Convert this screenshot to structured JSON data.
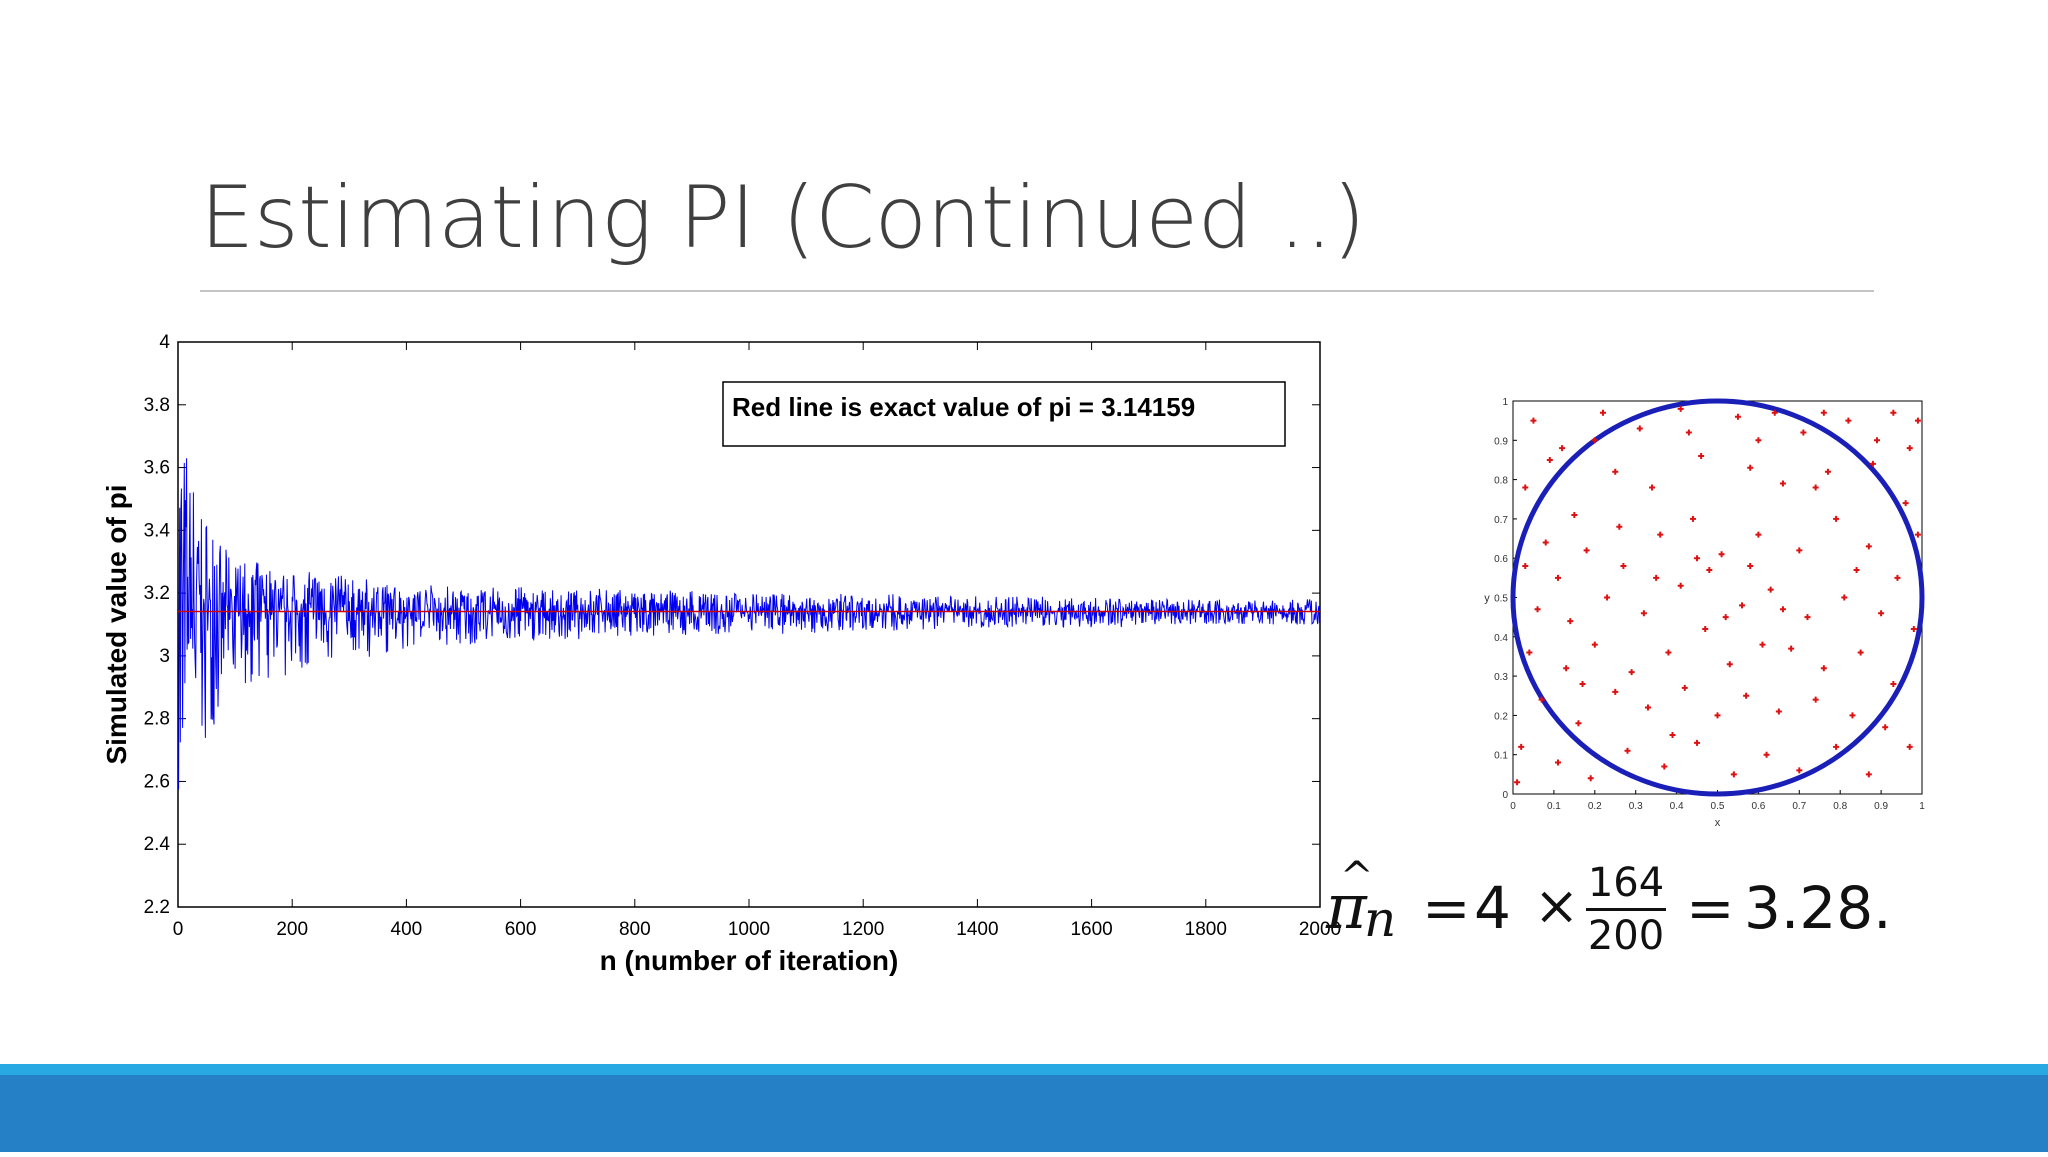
{
  "slide": {
    "title": "Estimating PI (Continued ..)"
  },
  "colors": {
    "footer_accent": "#29a9e3",
    "footer_bar": "#2680c5",
    "series_blue": "#0000ee",
    "exact_red": "#cc0000",
    "dots_red": "#dd1111"
  },
  "chart_data": [
    {
      "type": "line",
      "xlabel": "n (number of iteration)",
      "ylabel": "Simulated value of pi",
      "xlim": [
        0,
        2000
      ],
      "ylim": [
        2.2,
        4
      ],
      "xticks": [
        "0",
        "200",
        "400",
        "600",
        "800",
        "1000",
        "1200",
        "1400",
        "1600",
        "1800",
        "2000"
      ],
      "yticks": [
        "2.2",
        "2.4",
        "2.6",
        "2.8",
        "3",
        "3.2",
        "3.4",
        "3.6",
        "3.8",
        "4"
      ],
      "annotation": "Red line is exact value of pi = 3.14159",
      "reference_line": 3.14159,
      "series": [
        {
          "x": [
            0,
            20,
            40,
            60,
            80,
            100,
            150,
            200,
            250,
            300,
            350,
            400,
            450,
            500,
            550,
            600,
            650,
            700,
            750,
            800,
            850,
            900,
            950,
            1000,
            1050,
            1100,
            1150,
            1200,
            1250,
            1300,
            1350,
            1400,
            1450,
            1500,
            1550,
            1600,
            1650,
            1700,
            1750,
            1800,
            1850,
            1900,
            1950,
            2000
          ],
          "y": [
            4,
            3.6,
            3.5,
            3.4,
            3.35,
            3.3,
            3.3,
            3.26,
            3.28,
            3.25,
            3.24,
            3.22,
            3.23,
            3.22,
            3.22,
            3.22,
            3.21,
            3.21,
            3.22,
            3.2,
            3.21,
            3.21,
            3.2,
            3.2,
            3.2,
            3.2,
            3.2,
            3.19,
            3.2,
            3.19,
            3.19,
            3.19,
            3.19,
            3.19,
            3.19,
            3.19,
            3.18,
            3.18,
            3.18,
            3.18,
            3.18,
            3.18,
            3.18,
            3.18
          ],
          "y_low": [
            2.5,
            2.6,
            2.65,
            2.75,
            2.85,
            2.88,
            2.9,
            2.93,
            2.95,
            2.98,
            3,
            3.02,
            3.03,
            3.03,
            3.05,
            3.04,
            3.05,
            3.05,
            3.06,
            3.06,
            3.06,
            3.06,
            3.06,
            3.07,
            3.07,
            3.07,
            3.08,
            3.08,
            3.08,
            3.08,
            3.08,
            3.09,
            3.09,
            3.09,
            3.09,
            3.09,
            3.09,
            3.1,
            3.1,
            3.1,
            3.1,
            3.1,
            3.1,
            3.1
          ]
        }
      ]
    },
    {
      "type": "scatter",
      "xlabel": "x",
      "ylabel": "y",
      "xlim": [
        0,
        1
      ],
      "ylim": [
        0,
        1
      ],
      "xticks": [
        "0",
        "0.1",
        "0.2",
        "0.3",
        "0.4",
        "0.5",
        "0.6",
        "0.7",
        "0.8",
        "0.9",
        "1"
      ],
      "yticks": [
        "0",
        "0.1",
        "0.2",
        "0.3",
        "0.4",
        "0.5",
        "0.6",
        "0.7",
        "0.8",
        "0.9",
        "1"
      ],
      "circle": {
        "cx": 0.5,
        "cy": 0.5,
        "r": 0.5
      },
      "points": [
        [
          0.05,
          0.95
        ],
        [
          0.12,
          0.88
        ],
        [
          0.22,
          0.97
        ],
        [
          0.31,
          0.93
        ],
        [
          0.41,
          0.98
        ],
        [
          0.55,
          0.96
        ],
        [
          0.64,
          0.97
        ],
        [
          0.71,
          0.92
        ],
        [
          0.82,
          0.95
        ],
        [
          0.93,
          0.97
        ],
        [
          0.03,
          0.78
        ],
        [
          0.08,
          0.64
        ],
        [
          0.15,
          0.71
        ],
        [
          0.25,
          0.82
        ],
        [
          0.34,
          0.78
        ],
        [
          0.46,
          0.86
        ],
        [
          0.58,
          0.83
        ],
        [
          0.66,
          0.79
        ],
        [
          0.77,
          0.82
        ],
        [
          0.88,
          0.84
        ],
        [
          0.97,
          0.88
        ],
        [
          0.96,
          0.74
        ],
        [
          0.11,
          0.55
        ],
        [
          0.18,
          0.62
        ],
        [
          0.27,
          0.58
        ],
        [
          0.36,
          0.66
        ],
        [
          0.44,
          0.7
        ],
        [
          0.51,
          0.61
        ],
        [
          0.6,
          0.66
        ],
        [
          0.7,
          0.62
        ],
        [
          0.79,
          0.7
        ],
        [
          0.87,
          0.63
        ],
        [
          0.94,
          0.55
        ],
        [
          0.06,
          0.47
        ],
        [
          0.14,
          0.44
        ],
        [
          0.23,
          0.5
        ],
        [
          0.32,
          0.46
        ],
        [
          0.41,
          0.53
        ],
        [
          0.48,
          0.57
        ],
        [
          0.56,
          0.48
        ],
        [
          0.63,
          0.52
        ],
        [
          0.72,
          0.45
        ],
        [
          0.81,
          0.5
        ],
        [
          0.9,
          0.46
        ],
        [
          0.98,
          0.42
        ],
        [
          0.04,
          0.36
        ],
        [
          0.13,
          0.32
        ],
        [
          0.2,
          0.38
        ],
        [
          0.29,
          0.31
        ],
        [
          0.38,
          0.36
        ],
        [
          0.47,
          0.42
        ],
        [
          0.53,
          0.33
        ],
        [
          0.61,
          0.38
        ],
        [
          0.68,
          0.37
        ],
        [
          0.76,
          0.32
        ],
        [
          0.85,
          0.36
        ],
        [
          0.93,
          0.28
        ],
        [
          0.07,
          0.24
        ],
        [
          0.16,
          0.18
        ],
        [
          0.25,
          0.26
        ],
        [
          0.33,
          0.22
        ],
        [
          0.42,
          0.27
        ],
        [
          0.5,
          0.2
        ],
        [
          0.57,
          0.25
        ],
        [
          0.65,
          0.21
        ],
        [
          0.74,
          0.24
        ],
        [
          0.83,
          0.2
        ],
        [
          0.91,
          0.17
        ],
        [
          0.97,
          0.12
        ],
        [
          0.02,
          0.12
        ],
        [
          0.11,
          0.08
        ],
        [
          0.19,
          0.04
        ],
        [
          0.28,
          0.11
        ],
        [
          0.37,
          0.07
        ],
        [
          0.45,
          0.13
        ],
        [
          0.54,
          0.05
        ],
        [
          0.62,
          0.1
        ],
        [
          0.7,
          0.06
        ],
        [
          0.79,
          0.12
        ],
        [
          0.87,
          0.05
        ],
        [
          0.35,
          0.55
        ],
        [
          0.45,
          0.6
        ],
        [
          0.52,
          0.45
        ],
        [
          0.58,
          0.58
        ],
        [
          0.66,
          0.47
        ],
        [
          0.26,
          0.68
        ],
        [
          0.17,
          0.28
        ],
        [
          0.39,
          0.15
        ],
        [
          0.74,
          0.78
        ],
        [
          0.84,
          0.57
        ],
        [
          0.09,
          0.85
        ],
        [
          0.2,
          0.9
        ],
        [
          0.43,
          0.92
        ],
        [
          0.6,
          0.9
        ],
        [
          0.76,
          0.97
        ],
        [
          0.89,
          0.9
        ],
        [
          0.99,
          0.95
        ],
        [
          0.03,
          0.58
        ],
        [
          0.99,
          0.66
        ],
        [
          0.01,
          0.03
        ]
      ]
    }
  ],
  "formula": {
    "pi": "π",
    "hat": "^",
    "sub": "n",
    "eq": "=",
    "four": "4",
    "times": "×",
    "num": "164",
    "den": "200",
    "result": "3.28."
  }
}
